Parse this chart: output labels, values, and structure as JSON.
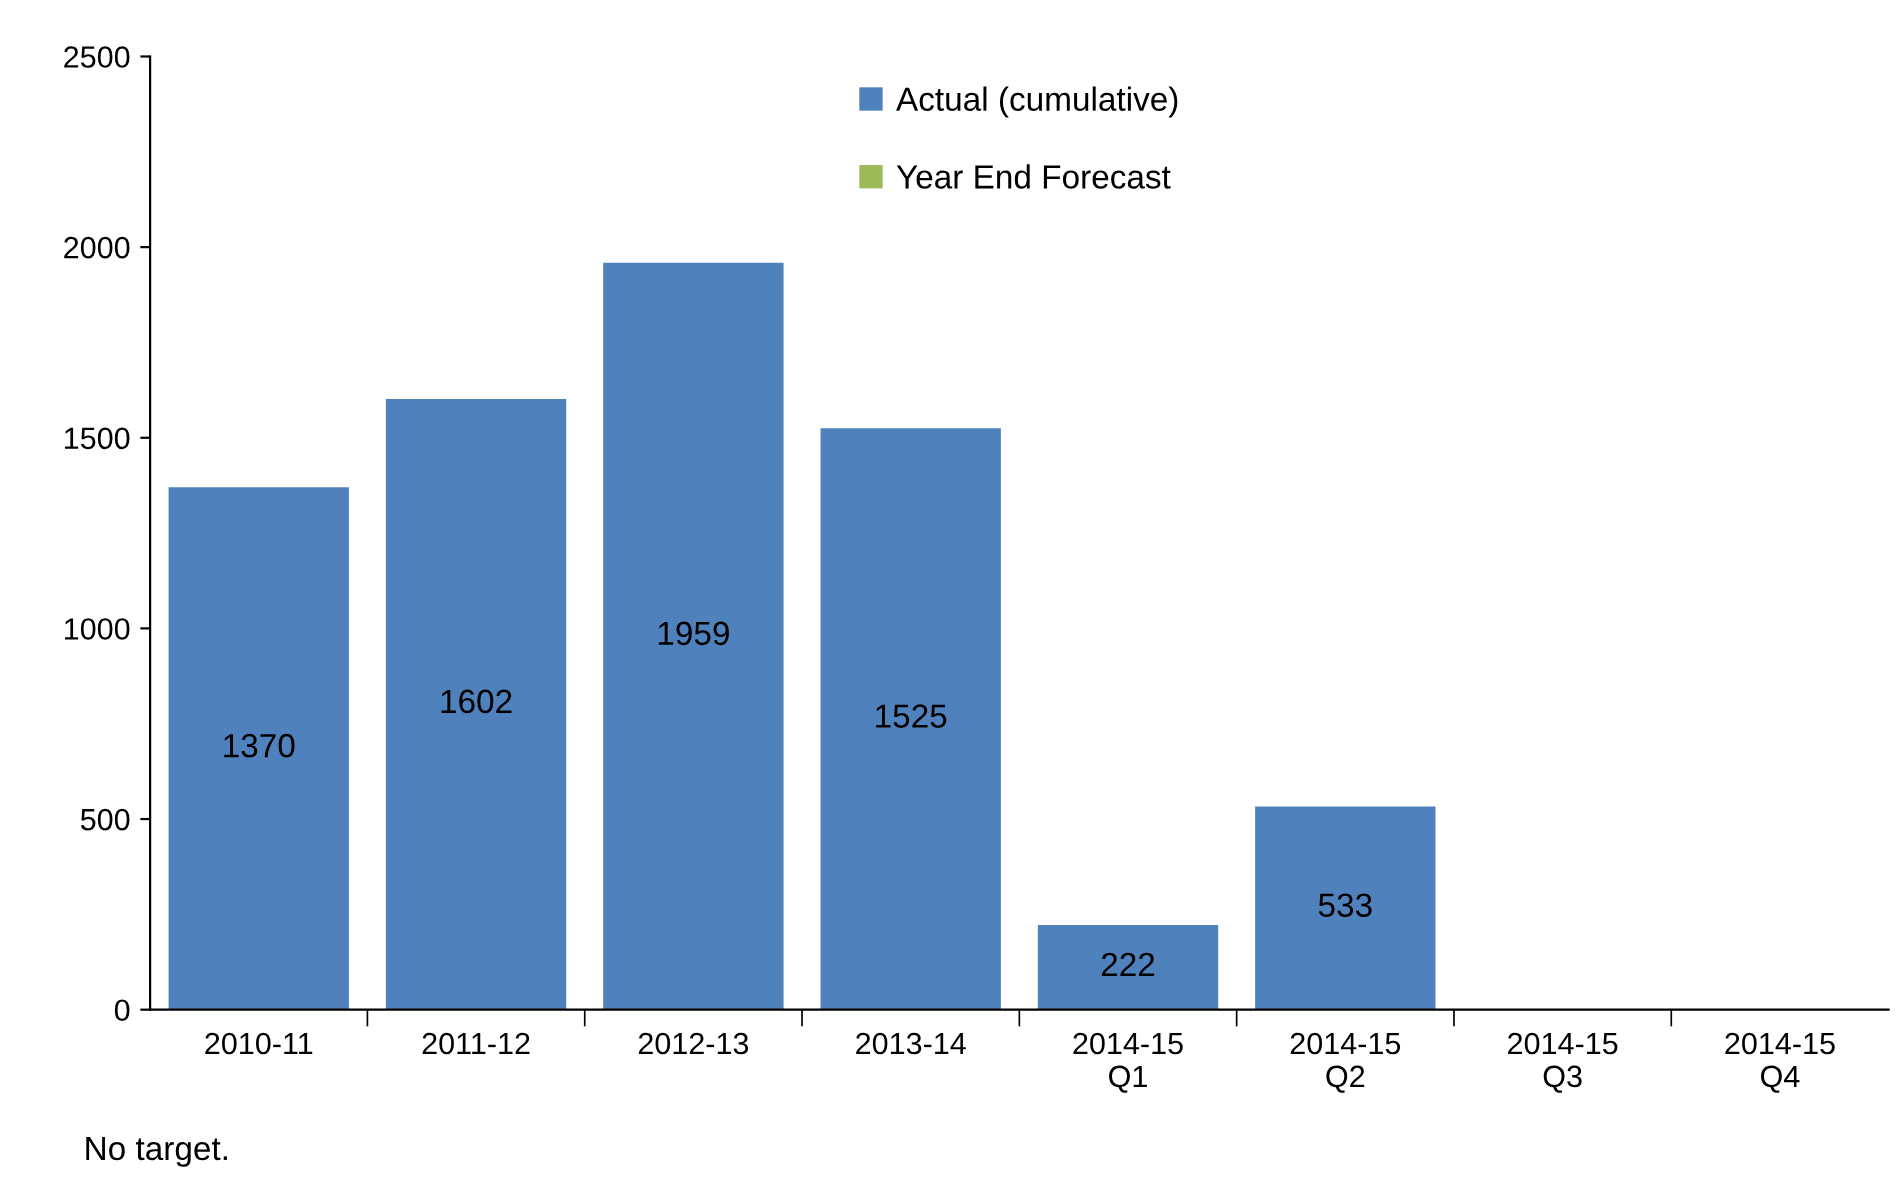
{
  "chart_data": {
    "type": "bar",
    "categories": [
      "2010-11",
      "2011-12",
      "2012-13",
      "2013-14",
      "2014-15\nQ1",
      "2014-15\nQ2",
      "2014-15\nQ3",
      "2014-15\nQ4"
    ],
    "series": [
      {
        "name": "Actual (cumulative)",
        "color": "#4f81bd",
        "values": [
          1370,
          1602,
          1959,
          1525,
          222,
          533,
          null,
          null
        ]
      },
      {
        "name": "Year End Forecast",
        "color": "#9bbb59",
        "values": [
          null,
          null,
          null,
          null,
          null,
          null,
          null,
          null
        ]
      }
    ],
    "ylim": [
      0,
      2500
    ],
    "yticks": [
      0,
      500,
      1000,
      1500,
      2000,
      2500
    ],
    "data_labels": true,
    "grid": false,
    "legend": "top",
    "annotations": [
      "No target."
    ]
  }
}
